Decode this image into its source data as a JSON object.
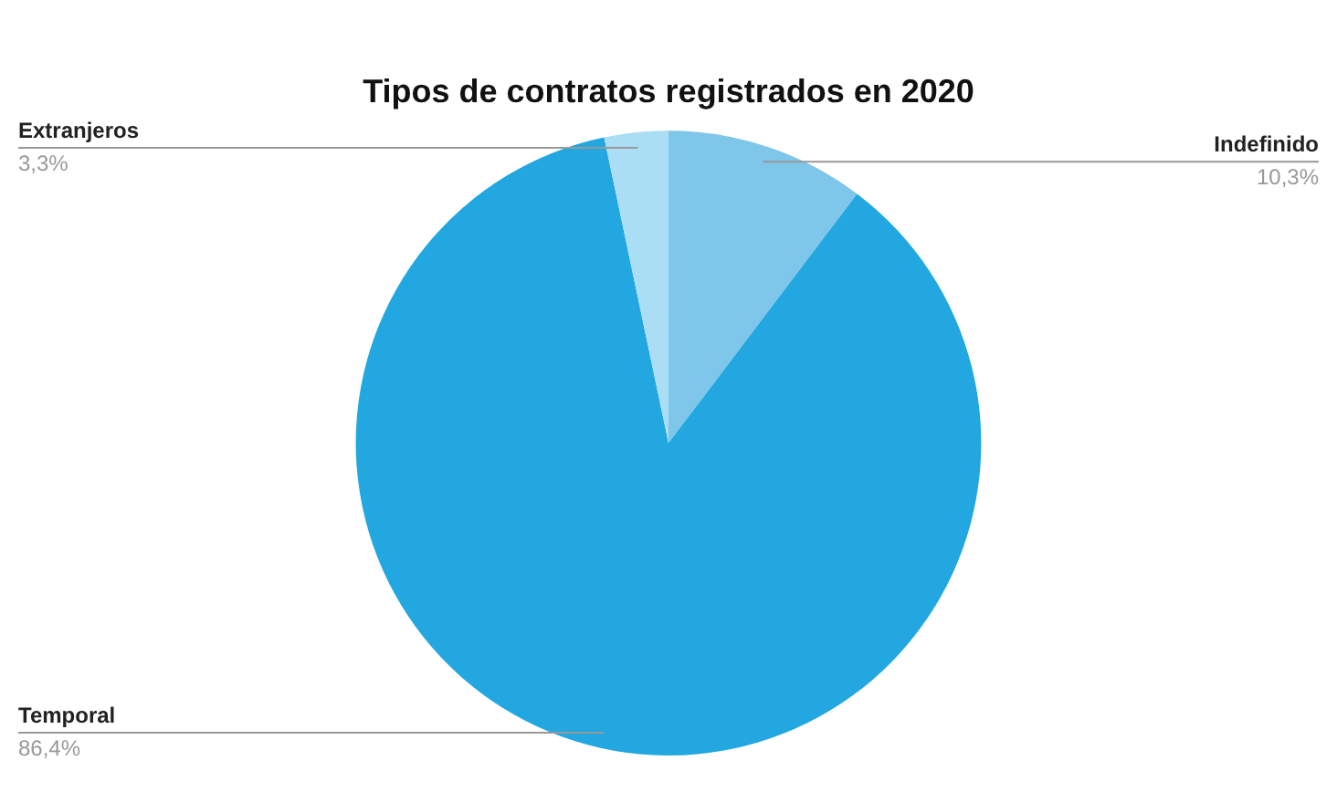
{
  "chart_data": {
    "type": "pie",
    "title": "Tipos de contratos registrados en 2020",
    "categories": [
      "Indefinido",
      "Temporal",
      "Extranjeros"
    ],
    "values": [
      10.3,
      86.4,
      3.3
    ],
    "value_labels": [
      "10,3%",
      "86,4%",
      "3,3%"
    ],
    "colors": [
      "#7ec6ea",
      "#22a7e0",
      "#a9def5"
    ],
    "legend": false
  }
}
